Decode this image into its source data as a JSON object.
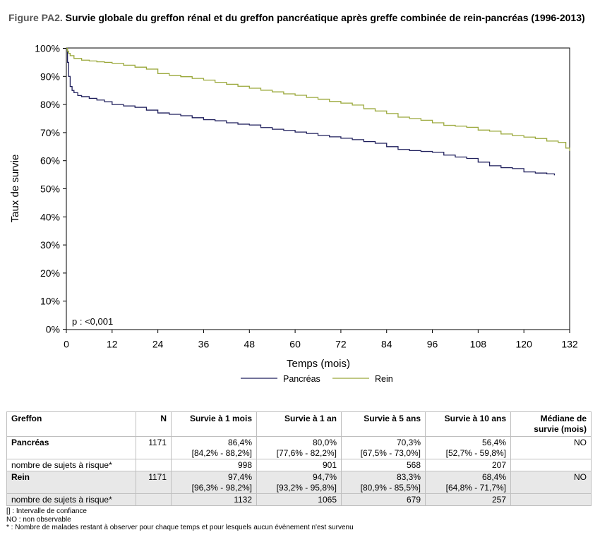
{
  "figure": {
    "label": "Figure PA2.",
    "title": "Survie globale du greffon rénal et du greffon pancréatique après greffe combinée de rein-pancréas (1996-2013)"
  },
  "chart_data": {
    "type": "line",
    "xlabel": "Temps (mois)",
    "ylabel": "Taux de survie",
    "xlim": [
      0,
      132
    ],
    "ylim": [
      0,
      100
    ],
    "x_ticks": [
      "0",
      "12",
      "24",
      "36",
      "48",
      "60",
      "72",
      "84",
      "96",
      "108",
      "120",
      "132"
    ],
    "y_ticks": [
      "0%",
      "10%",
      "20%",
      "30%",
      "40%",
      "50%",
      "60%",
      "70%",
      "80%",
      "90%",
      "100%"
    ],
    "annotation": "p : <0,001",
    "legend_position": "bottom",
    "grid": false,
    "series": [
      {
        "name": "Pancréas",
        "color": "#1f1f5c",
        "x": [
          0,
          0.3,
          0.6,
          1,
          1.5,
          2,
          3,
          4,
          6,
          8,
          10,
          12,
          15,
          18,
          21,
          24,
          27,
          30,
          33,
          36,
          39,
          42,
          45,
          48,
          51,
          54,
          57,
          60,
          63,
          66,
          69,
          72,
          75,
          78,
          81,
          84,
          87,
          90,
          93,
          96,
          99,
          102,
          105,
          108,
          111,
          114,
          117,
          120,
          123,
          126,
          128
        ],
        "y": [
          100,
          95,
          90,
          86.4,
          85,
          84.2,
          83.2,
          82.8,
          82.2,
          81.6,
          81,
          80,
          79.5,
          79,
          78,
          77,
          76.5,
          76,
          75.3,
          74.6,
          74.2,
          73.5,
          73,
          72.7,
          71.8,
          71.2,
          70.8,
          70.2,
          69.7,
          69,
          68.5,
          68,
          67.5,
          66.8,
          66.2,
          65,
          64,
          63.6,
          63.3,
          63,
          62,
          61.3,
          60.8,
          59.5,
          58.2,
          57.5,
          57.2,
          56,
          55.6,
          55.3,
          54.8
        ]
      },
      {
        "name": "Rein",
        "color": "#9aa83a",
        "x": [
          0,
          0.3,
          0.6,
          1,
          2,
          4,
          6,
          8,
          10,
          12,
          15,
          18,
          21,
          24,
          27,
          30,
          33,
          36,
          39,
          42,
          45,
          48,
          51,
          54,
          57,
          60,
          63,
          66,
          69,
          72,
          75,
          78,
          81,
          84,
          87,
          90,
          93,
          96,
          99,
          102,
          105,
          108,
          111,
          114,
          117,
          120,
          123,
          126,
          129,
          131,
          132
        ],
        "y": [
          100,
          99,
          98.2,
          97.4,
          96.4,
          95.8,
          95.5,
          95.2,
          95,
          94.7,
          94,
          93.3,
          92.6,
          91,
          90.4,
          89.9,
          89.3,
          88.7,
          87.9,
          87.2,
          86.5,
          85.8,
          85.1,
          84.5,
          83.8,
          83.3,
          82.5,
          81.9,
          81.1,
          80.5,
          79.8,
          78.5,
          77.7,
          76.8,
          75.5,
          75,
          74.4,
          73.5,
          72.6,
          72.3,
          71.9,
          70.9,
          70.5,
          69.5,
          68.9,
          68.4,
          67.9,
          67,
          66.5,
          64.5,
          63.5
        ]
      }
    ]
  },
  "table": {
    "headers": [
      "Greffon",
      "N",
      "Survie à 1 mois",
      "Survie à 1 an",
      "Survie à 5 ans",
      "Survie à 10 ans",
      "Médiane de survie (mois)"
    ],
    "groups": [
      {
        "name": "Pancréas",
        "n": "1171",
        "survival": [
          "86,4%",
          "80,0%",
          "70,3%",
          "56,4%"
        ],
        "ci": [
          "[84,2% - 88,2%]",
          "[77,6% - 82,2%]",
          "[67,5% - 73,0%]",
          "[52,7% - 59,8%]"
        ],
        "median": "NO",
        "risk_label": "nombre de sujets à risque*",
        "at_risk": [
          "998",
          "901",
          "568",
          "207"
        ]
      },
      {
        "name": "Rein",
        "n": "1171",
        "survival": [
          "97,4%",
          "94,7%",
          "83,3%",
          "68,4%"
        ],
        "ci": [
          "[96,3% - 98,2%]",
          "[93,2% - 95,8%]",
          "[80,9% - 85,5%]",
          "[64,8% - 71,7%]"
        ],
        "median": "NO",
        "risk_label": "nombre de sujets à risque*",
        "at_risk": [
          "1132",
          "1065",
          "679",
          "257"
        ]
      }
    ]
  },
  "notes": [
    "[] : Intervalle de confiance",
    "NO : non observable",
    "* : Nombre de malades restant à observer pour chaque temps et pour lesquels aucun évènement n'est survenu"
  ]
}
